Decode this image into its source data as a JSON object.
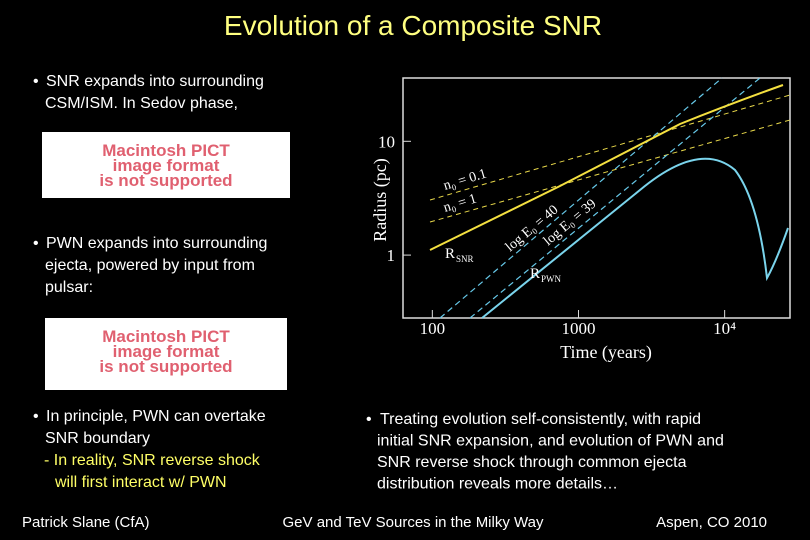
{
  "title": "Evolution of a Composite SNR",
  "left_bullets": [
    {
      "lines": [
        "SNR expands into surrounding",
        "CSM/ISM. In Sedov phase,"
      ]
    },
    {
      "lines": [
        "PWN expands into surrounding",
        "ejecta, powered by input from",
        "pulsar:"
      ]
    },
    {
      "lines": [
        "In principle, PWN can overtake",
        "SNR boundary"
      ],
      "sub_lines": [
        "- In reality, SNR reverse shock",
        "will first interact w/ PWN"
      ]
    }
  ],
  "right_bullet": {
    "lines": [
      "Treating evolution self-consistently, with rapid",
      "initial SNR expansion, and evolution of PWN and",
      "SNR reverse shock through common ejecta",
      "distribution reveals more details…"
    ]
  },
  "placeholders": [
    {
      "lines": [
        "Macintosh PICT",
        "image format",
        "is not supported"
      ]
    },
    {
      "lines": [
        "Macintosh PICT",
        "image format",
        "is not supported"
      ]
    }
  ],
  "figure": {
    "xlabel": "Time (years)",
    "ylabel": "Radius (pc)",
    "log_x": true,
    "log_y": true,
    "xlim": [
      63,
      28000
    ],
    "ylim": [
      0.28,
      36
    ],
    "xticks": [
      100,
      1000,
      {
        "value": 10000,
        "label": "10⁴"
      }
    ],
    "yticks": [
      1,
      10
    ],
    "curve_labels": {
      "n0_01": "n₀ = 0.1",
      "n0_1": "n₀ = 1",
      "e40": "log E₀ = 40",
      "e39": "log E₀ = 39",
      "snr": {
        "main": "R",
        "sub": "SNR"
      },
      "pwn": {
        "main": "R",
        "sub": "PWN"
      }
    }
  },
  "footer": {
    "left": "Patrick Slane (CfA)",
    "center": "GeV and TeV Sources in the Milky Way",
    "right": "Aspen, CO 2010"
  }
}
